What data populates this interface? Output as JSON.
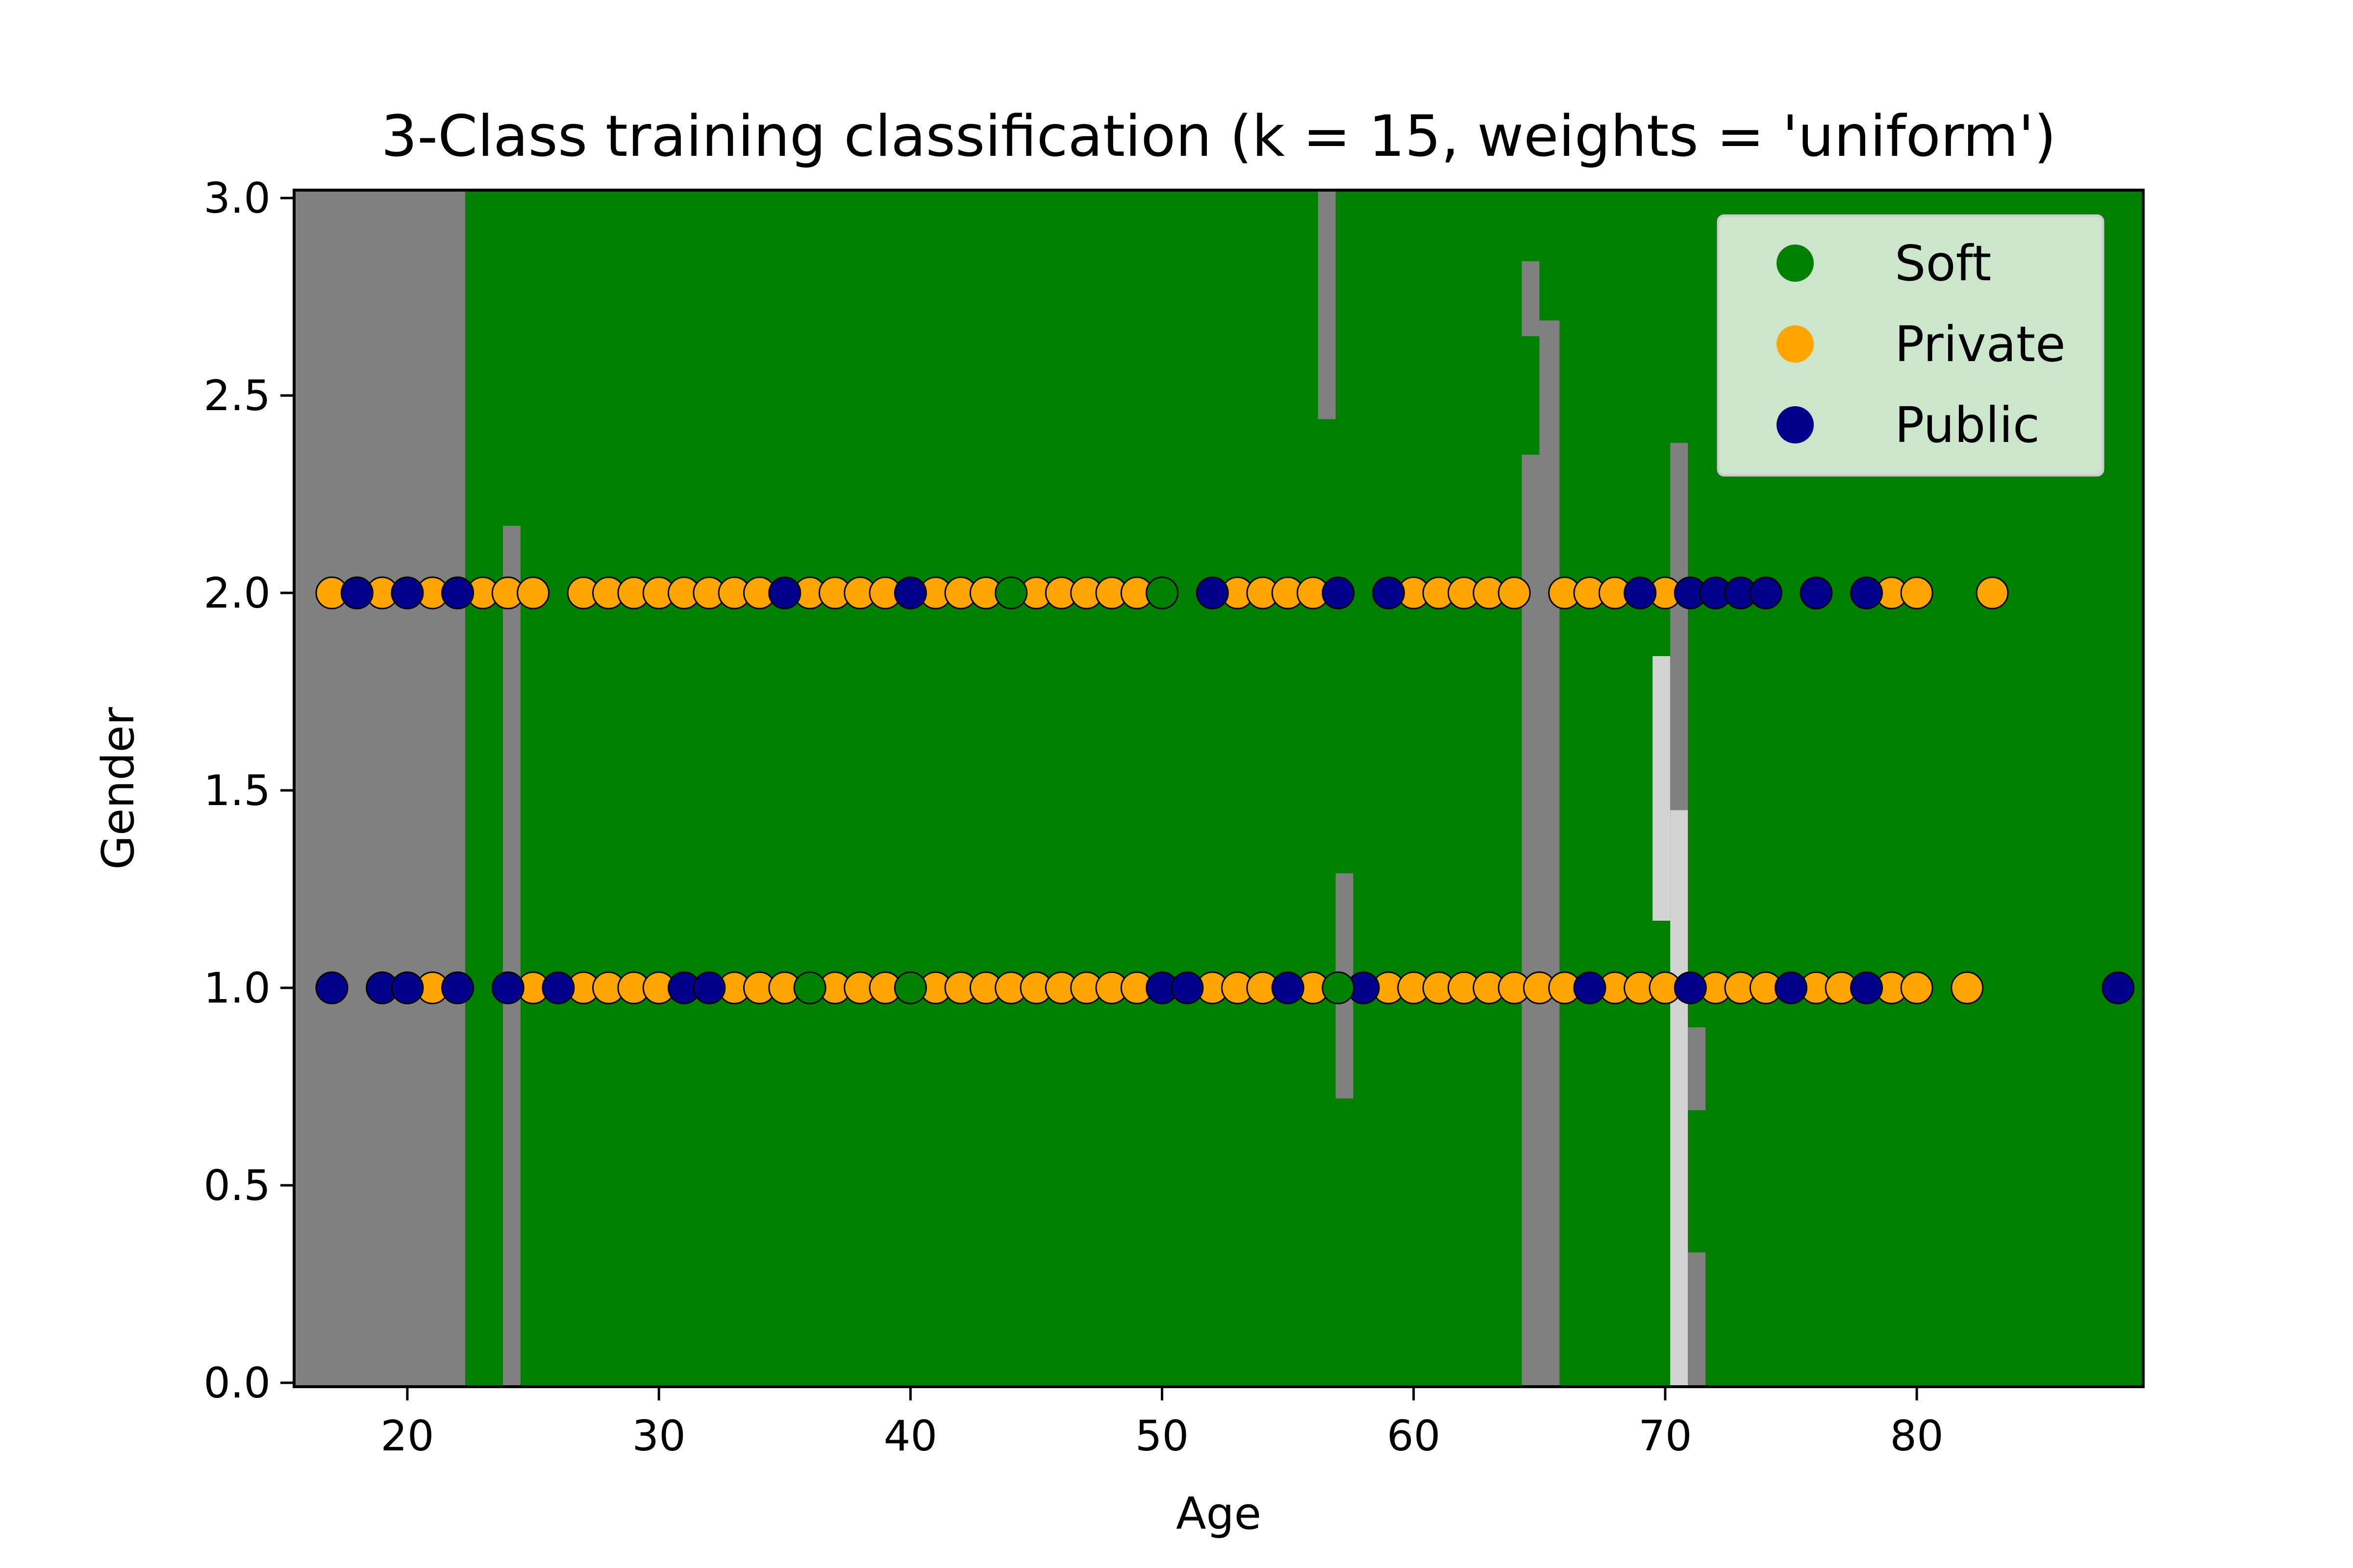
{
  "chart_data": {
    "type": "scatter",
    "title": "3-Class training classification (k = 15, weights = 'uniform')",
    "xlabel": "Age",
    "ylabel": "Gender",
    "xlim": [
      15.5,
      89.0
    ],
    "ylim": [
      -0.01,
      3.02
    ],
    "xticks": [
      20,
      30,
      40,
      50,
      60,
      70,
      80
    ],
    "yticks": [
      0.0,
      0.5,
      1.0,
      1.5,
      2.0,
      2.5,
      3.0
    ],
    "xtick_labels": [
      "20",
      "30",
      "40",
      "50",
      "60",
      "70",
      "80"
    ],
    "ytick_labels": [
      "0.0",
      "0.5",
      "1.0",
      "1.5",
      "2.0",
      "2.5",
      "3.0"
    ],
    "colors": {
      "Soft": "#008000",
      "Private": "#FFA500",
      "Public": "#00008B",
      "region_soft": "#008000",
      "region_private": "#808080",
      "region_public": "#D3D3D3"
    },
    "legend_position": "upper right",
    "legend": [
      "Soft",
      "Private",
      "Public"
    ],
    "decision_regions": [
      {
        "class": "Private",
        "x0": 15.5,
        "x1": 22.3,
        "y0": -0.01,
        "y1": 3.02
      },
      {
        "class": "Private",
        "x0": 23.8,
        "x1": 24.5,
        "y0": -0.01,
        "y1": 2.17
      },
      {
        "class": "Private",
        "x0": 56.2,
        "x1": 56.9,
        "y0": 2.44,
        "y1": 3.02
      },
      {
        "class": "Private",
        "x0": 56.9,
        "x1": 57.6,
        "y0": 0.72,
        "y1": 1.29
      },
      {
        "class": "Private",
        "x0": 64.3,
        "x1": 65.0,
        "y0": -0.01,
        "y1": 2.35
      },
      {
        "class": "Private",
        "x0": 64.3,
        "x1": 65.0,
        "y0": 2.65,
        "y1": 2.84
      },
      {
        "class": "Private",
        "x0": 65.0,
        "x1": 65.8,
        "y0": -0.01,
        "y1": 2.69
      },
      {
        "class": "Public",
        "x0": 69.5,
        "x1": 70.2,
        "y0": 1.17,
        "y1": 1.84
      },
      {
        "class": "Private",
        "x0": 70.2,
        "x1": 70.9,
        "y0": 1.45,
        "y1": 2.38
      },
      {
        "class": "Public",
        "x0": 70.2,
        "x1": 70.9,
        "y0": -0.01,
        "y1": 1.45
      },
      {
        "class": "Private",
        "x0": 70.9,
        "x1": 71.6,
        "y0": 0.69,
        "y1": 0.9
      },
      {
        "class": "Private",
        "x0": 70.9,
        "x1": 71.6,
        "y0": -0.01,
        "y1": 0.33
      }
    ],
    "series": [
      {
        "name": "Private",
        "x": [
          17,
          19,
          21,
          23,
          24,
          25,
          27,
          28,
          29,
          30,
          31,
          32,
          33,
          34,
          36,
          37,
          38,
          39,
          41,
          42,
          43,
          45,
          46,
          47,
          48,
          49,
          50,
          53,
          54,
          55,
          56,
          60,
          61,
          62,
          63,
          64,
          66,
          67,
          68,
          70,
          79,
          80,
          83,
          21,
          25,
          27,
          28,
          29,
          30,
          33,
          34,
          35,
          37,
          38,
          39,
          41,
          42,
          43,
          44,
          45,
          46,
          47,
          48,
          49,
          52,
          53,
          54,
          56,
          59,
          60,
          61,
          62,
          63,
          64,
          65,
          66,
          68,
          69,
          70,
          72,
          73,
          74,
          76,
          77,
          79,
          80,
          82
        ],
        "y": [
          2,
          2,
          2,
          2,
          2,
          2,
          2,
          2,
          2,
          2,
          2,
          2,
          2,
          2,
          2,
          2,
          2,
          2,
          2,
          2,
          2,
          2,
          2,
          2,
          2,
          2,
          2,
          2,
          2,
          2,
          2,
          2,
          2,
          2,
          2,
          2,
          2,
          2,
          2,
          2,
          2,
          2,
          2,
          1,
          1,
          1,
          1,
          1,
          1,
          1,
          1,
          1,
          1,
          1,
          1,
          1,
          1,
          1,
          1,
          1,
          1,
          1,
          1,
          1,
          1,
          1,
          1,
          1,
          1,
          1,
          1,
          1,
          1,
          1,
          1,
          1,
          1,
          1,
          1,
          1,
          1,
          1,
          1,
          1,
          1,
          1,
          1
        ]
      },
      {
        "name": "Public",
        "x": [
          18,
          20,
          22,
          35,
          40,
          52,
          57,
          59,
          69,
          71,
          72,
          73,
          74,
          76,
          78,
          17,
          19,
          20,
          22,
          24,
          26,
          31,
          32,
          50,
          51,
          55,
          58,
          67,
          71,
          75,
          78,
          88
        ],
        "y": [
          2,
          2,
          2,
          2,
          2,
          2,
          2,
          2,
          2,
          2,
          2,
          2,
          2,
          2,
          2,
          1,
          1,
          1,
          1,
          1,
          1,
          1,
          1,
          1,
          1,
          1,
          1,
          1,
          1,
          1,
          1,
          1
        ]
      },
      {
        "name": "Soft",
        "x": [
          44,
          50,
          36,
          40,
          57
        ],
        "y": [
          2,
          2,
          1,
          1,
          1
        ]
      }
    ]
  }
}
